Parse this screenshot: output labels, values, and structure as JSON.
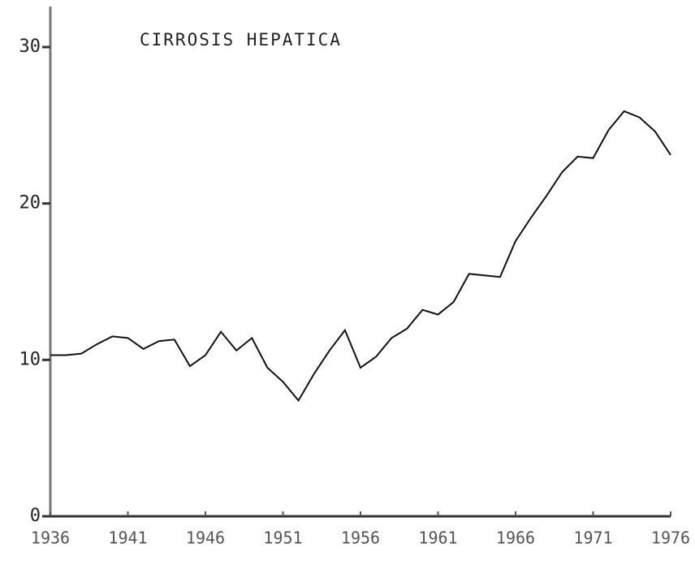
{
  "chart_data": {
    "type": "line",
    "title": "CIRROSIS HEPATICA",
    "x": [
      1936,
      1937,
      1938,
      1939,
      1940,
      1941,
      1942,
      1943,
      1944,
      1945,
      1946,
      1947,
      1948,
      1949,
      1950,
      1951,
      1952,
      1953,
      1954,
      1955,
      1956,
      1957,
      1958,
      1959,
      1960,
      1961,
      1962,
      1963,
      1964,
      1965,
      1966,
      1967,
      1968,
      1969,
      1970,
      1971,
      1972,
      1973,
      1974,
      1975,
      1976
    ],
    "series": [
      {
        "name": "CIRROSIS HEPATICA",
        "color": "#111111",
        "values": [
          10.3,
          10.3,
          10.4,
          11.0,
          11.5,
          11.4,
          10.7,
          11.2,
          11.3,
          9.6,
          10.3,
          11.8,
          10.6,
          11.4,
          9.5,
          8.6,
          7.4,
          9.1,
          10.6,
          11.9,
          9.5,
          10.2,
          11.4,
          12.0,
          13.2,
          12.9,
          13.7,
          15.5,
          15.4,
          15.3,
          17.6,
          19.1,
          20.5,
          22.0,
          23.0,
          22.9,
          24.7,
          25.9,
          25.5,
          24.6,
          23.1
        ]
      }
    ],
    "xlim": [
      1936,
      1976
    ],
    "xticks": [
      1936,
      1941,
      1946,
      1951,
      1956,
      1961,
      1966,
      1971,
      1976
    ],
    "ylim": [
      0,
      30
    ],
    "yticks": [
      0,
      10,
      20,
      30
    ]
  }
}
